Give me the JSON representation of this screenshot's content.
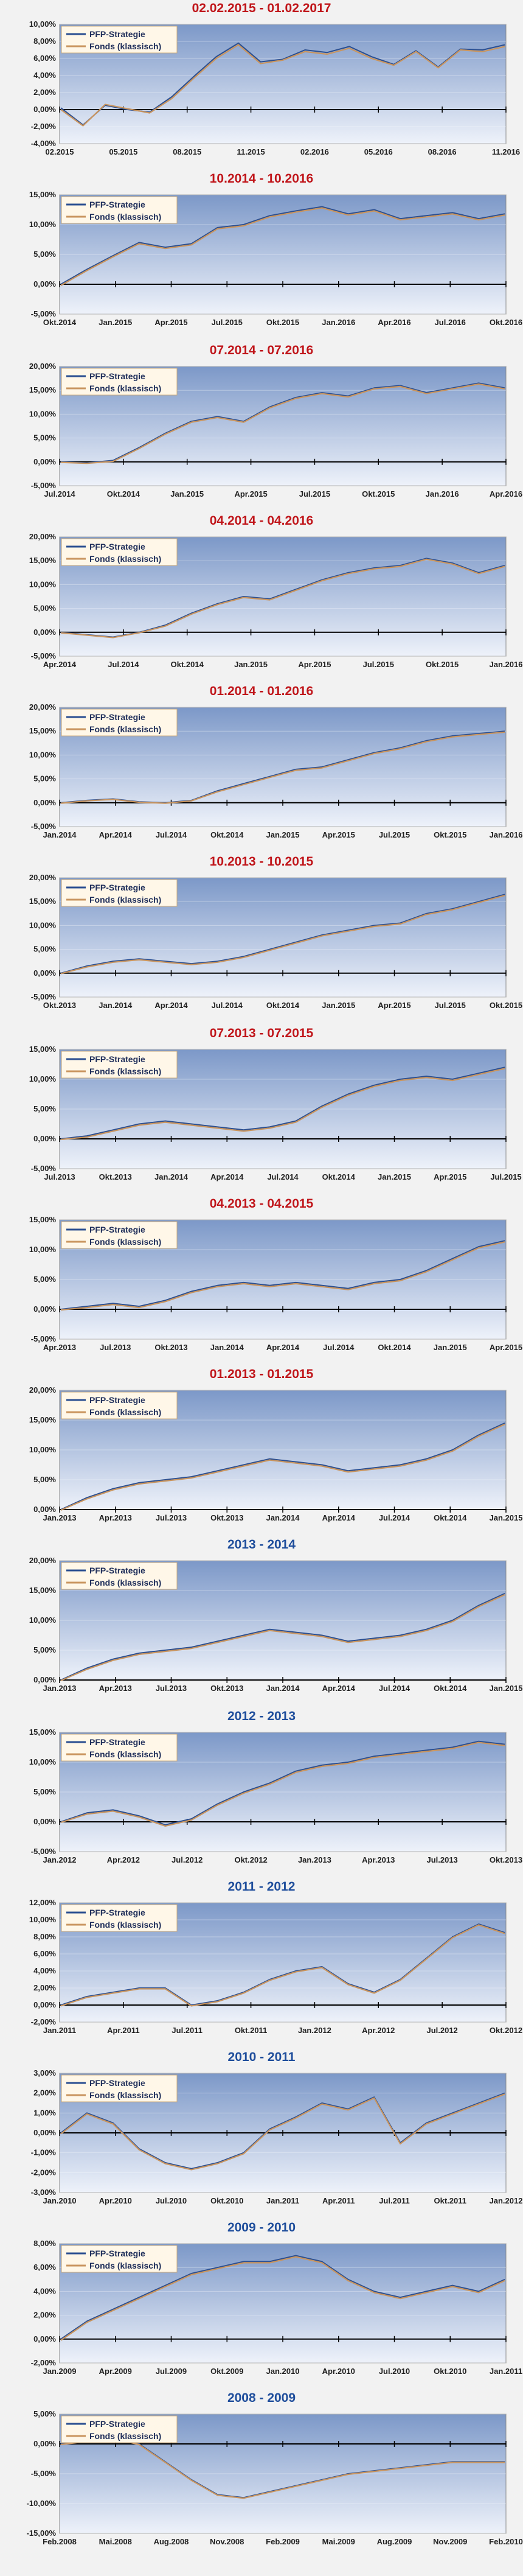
{
  "colors": {
    "red_title": "#c0151a",
    "blue_title": "#1f4e9c",
    "strategy": "#2b4f91",
    "fund": "#c9955f",
    "plot_top": "#7c98c8",
    "plot_bottom": "#eef2fa"
  },
  "legend": {
    "strategy": "PFP-Strategie",
    "fund": "Fonds (klassisch)"
  },
  "chart_data": [
    {
      "type": "line",
      "title": "02.02.2015 - 01.02.2017",
      "title_color": "red",
      "y_ticks": [
        "-4,00%",
        "-2,00%",
        "0,00%",
        "2,00%",
        "4,00%",
        "6,00%",
        "8,00%",
        "10,00%"
      ],
      "x_ticks": [
        "02.2015",
        "05.2015",
        "08.2015",
        "11.2015",
        "02.2016",
        "05.2016",
        "08.2016",
        "11.2016"
      ],
      "series": [
        {
          "name": "PFP-Strategie",
          "values": [
            0.2,
            -1.8,
            0.5,
            0.0,
            -0.3,
            1.5,
            3.9,
            6.2,
            7.8,
            5.6,
            5.9,
            7.0,
            6.7,
            7.4,
            6.2,
            5.3,
            6.9,
            5.0,
            7.1,
            7.0,
            7.6
          ]
        },
        {
          "name": "Fonds (klassisch)",
          "values": [
            0.0,
            -1.9,
            0.6,
            0.1,
            -0.4,
            1.3,
            3.7,
            6.0,
            7.6,
            5.4,
            5.8,
            6.8,
            6.5,
            7.2,
            6.0,
            5.2,
            6.8,
            4.9,
            7.0,
            6.8,
            7.4
          ]
        }
      ]
    },
    {
      "type": "line",
      "title": "10.2014 - 10.2016",
      "title_color": "red",
      "y_ticks": [
        "-5,00%",
        "0,00%",
        "5,00%",
        "10,00%",
        "15,00%"
      ],
      "x_ticks": [
        "Okt.2014",
        "Jan.2015",
        "Apr.2015",
        "Jul.2015",
        "Okt.2015",
        "Jan.2016",
        "Apr.2016",
        "Jul.2016",
        "Okt.2016"
      ],
      "series": [
        {
          "name": "PFP-Strategie",
          "values": [
            0.0,
            2.5,
            4.8,
            7.0,
            6.2,
            6.8,
            9.5,
            10.0,
            11.5,
            12.3,
            13.0,
            11.8,
            12.5,
            11.0,
            11.5,
            12.0,
            11.0,
            11.8
          ]
        },
        {
          "name": "Fonds (klassisch)",
          "values": [
            -0.2,
            2.3,
            4.6,
            6.8,
            6.0,
            6.6,
            9.3,
            9.8,
            11.3,
            12.1,
            12.8,
            11.6,
            12.3,
            10.8,
            11.3,
            11.8,
            10.8,
            11.6
          ]
        }
      ]
    },
    {
      "type": "line",
      "title": "07.2014 - 07.2016",
      "title_color": "red",
      "y_ticks": [
        "-5,00%",
        "0,00%",
        "5,00%",
        "10,00%",
        "15,00%",
        "20,00%"
      ],
      "x_ticks": [
        "Jul.2014",
        "Okt.2014",
        "Jan.2015",
        "Apr.2015",
        "Jul.2015",
        "Okt.2015",
        "Jan.2016",
        "Apr.2016"
      ],
      "series": [
        {
          "name": "PFP-Strategie",
          "values": [
            0.0,
            -0.2,
            0.3,
            3.0,
            6.0,
            8.5,
            9.5,
            8.5,
            11.5,
            13.5,
            14.5,
            13.8,
            15.5,
            16.0,
            14.5,
            15.5,
            16.5,
            15.5
          ]
        },
        {
          "name": "Fonds (klassisch)",
          "values": [
            -0.1,
            -0.3,
            0.1,
            2.8,
            5.8,
            8.3,
            9.3,
            8.3,
            11.3,
            13.3,
            14.3,
            13.6,
            15.3,
            15.8,
            14.3,
            15.3,
            16.3,
            15.3
          ]
        }
      ]
    },
    {
      "type": "line",
      "title": "04.2014 - 04.2016",
      "title_color": "red",
      "y_ticks": [
        "-5,00%",
        "0,00%",
        "5,00%",
        "10,00%",
        "15,00%",
        "20,00%"
      ],
      "x_ticks": [
        "Apr.2014",
        "Jul.2014",
        "Okt.2014",
        "Jan.2015",
        "Apr.2015",
        "Jul.2015",
        "Okt.2015",
        "Jan.2016"
      ],
      "series": [
        {
          "name": "PFP-Strategie",
          "values": [
            0.0,
            -0.5,
            -1.0,
            0.0,
            1.5,
            4.0,
            6.0,
            7.5,
            7.0,
            9.0,
            11.0,
            12.5,
            13.5,
            14.0,
            15.5,
            14.5,
            12.5,
            14.0
          ]
        },
        {
          "name": "Fonds (klassisch)",
          "values": [
            -0.1,
            -0.6,
            -1.1,
            -0.1,
            1.3,
            3.8,
            5.8,
            7.3,
            6.8,
            8.8,
            10.8,
            12.3,
            13.3,
            13.8,
            15.3,
            14.3,
            12.3,
            13.8
          ]
        }
      ]
    },
    {
      "type": "line",
      "title": "01.2014 - 01.2016",
      "title_color": "red",
      "y_ticks": [
        "-5,00%",
        "0,00%",
        "5,00%",
        "10,00%",
        "15,00%",
        "20,00%"
      ],
      "x_ticks": [
        "Jan.2014",
        "Apr.2014",
        "Jul.2014",
        "Okt.2014",
        "Jan.2015",
        "Apr.2015",
        "Jul.2015",
        "Okt.2015",
        "Jan.2016"
      ],
      "series": [
        {
          "name": "PFP-Strategie",
          "values": [
            0.0,
            0.5,
            0.8,
            0.2,
            0.0,
            0.5,
            2.5,
            4.0,
            5.5,
            7.0,
            7.5,
            9.0,
            10.5,
            11.5,
            13.0,
            14.0,
            14.5,
            15.0
          ]
        },
        {
          "name": "Fonds (klassisch)",
          "values": [
            -0.1,
            0.4,
            0.7,
            0.1,
            -0.1,
            0.4,
            2.3,
            3.8,
            5.3,
            6.8,
            7.3,
            8.8,
            10.3,
            11.3,
            12.8,
            13.8,
            14.3,
            14.8
          ]
        }
      ]
    },
    {
      "type": "line",
      "title": "10.2013 - 10.2015",
      "title_color": "red",
      "y_ticks": [
        "-5,00%",
        "0,00%",
        "5,00%",
        "10,00%",
        "15,00%",
        "20,00%"
      ],
      "x_ticks": [
        "Okt.2013",
        "Jan.2014",
        "Apr.2014",
        "Jul.2014",
        "Okt.2014",
        "Jan.2015",
        "Apr.2015",
        "Jul.2015",
        "Okt.2015"
      ],
      "series": [
        {
          "name": "PFP-Strategie",
          "values": [
            0.0,
            1.5,
            2.5,
            3.0,
            2.5,
            2.0,
            2.5,
            3.5,
            5.0,
            6.5,
            8.0,
            9.0,
            10.0,
            10.5,
            12.5,
            13.5,
            15.0,
            16.5
          ]
        },
        {
          "name": "Fonds (klassisch)",
          "values": [
            -0.1,
            1.3,
            2.3,
            2.8,
            2.3,
            1.8,
            2.3,
            3.3,
            4.8,
            6.3,
            7.8,
            8.8,
            9.8,
            10.3,
            12.3,
            13.3,
            14.8,
            16.3
          ]
        }
      ]
    },
    {
      "type": "line",
      "title": "07.2013 - 07.2015",
      "title_color": "red",
      "y_ticks": [
        "-5,00%",
        "0,00%",
        "5,00%",
        "10,00%",
        "15,00%"
      ],
      "x_ticks": [
        "Jul.2013",
        "Okt.2013",
        "Jan.2014",
        "Apr.2014",
        "Jul.2014",
        "Okt.2014",
        "Jan.2015",
        "Apr.2015",
        "Jul.2015"
      ],
      "series": [
        {
          "name": "PFP-Strategie",
          "values": [
            0.0,
            0.5,
            1.5,
            2.5,
            3.0,
            2.5,
            2.0,
            1.5,
            2.0,
            3.0,
            5.5,
            7.5,
            9.0,
            10.0,
            10.5,
            10.0,
            11.0,
            12.0
          ]
        },
        {
          "name": "Fonds (klassisch)",
          "values": [
            -0.1,
            0.3,
            1.3,
            2.3,
            2.8,
            2.3,
            1.8,
            1.3,
            1.8,
            2.8,
            5.3,
            7.3,
            8.8,
            9.8,
            10.3,
            9.8,
            10.8,
            11.8
          ]
        }
      ]
    },
    {
      "type": "line",
      "title": "04.2013 - 04.2015",
      "title_color": "red",
      "y_ticks": [
        "-5,00%",
        "0,00%",
        "5,00%",
        "10,00%",
        "15,00%"
      ],
      "x_ticks": [
        "Apr.2013",
        "Jul.2013",
        "Okt.2013",
        "Jan.2014",
        "Apr.2014",
        "Jul.2014",
        "Okt.2014",
        "Jan.2015",
        "Apr.2015"
      ],
      "series": [
        {
          "name": "PFP-Strategie",
          "values": [
            0.0,
            0.5,
            1.0,
            0.5,
            1.5,
            3.0,
            4.0,
            4.5,
            4.0,
            4.5,
            4.0,
            3.5,
            4.5,
            5.0,
            6.5,
            8.5,
            10.5,
            11.5
          ]
        },
        {
          "name": "Fonds (klassisch)",
          "values": [
            -0.1,
            0.3,
            0.8,
            0.3,
            1.3,
            2.8,
            3.8,
            4.3,
            3.8,
            4.3,
            3.8,
            3.3,
            4.3,
            4.8,
            6.3,
            8.3,
            10.3,
            11.3
          ]
        }
      ]
    },
    {
      "type": "line",
      "title": "01.2013 - 01.2015",
      "title_color": "red",
      "y_ticks": [
        "0,00%",
        "5,00%",
        "10,00%",
        "15,00%",
        "20,00%"
      ],
      "x_ticks": [
        "Jan.2013",
        "Apr.2013",
        "Jul.2013",
        "Okt.2013",
        "Jan.2014",
        "Apr.2014",
        "Jul.2014",
        "Okt.2014",
        "Jan.2015"
      ],
      "series": [
        {
          "name": "PFP-Strategie",
          "values": [
            0.0,
            2.0,
            3.5,
            4.5,
            5.0,
            5.5,
            6.5,
            7.5,
            8.5,
            8.0,
            7.5,
            6.5,
            7.0,
            7.5,
            8.5,
            10.0,
            12.5,
            14.5
          ]
        },
        {
          "name": "Fonds (klassisch)",
          "values": [
            -0.1,
            1.8,
            3.3,
            4.3,
            4.8,
            5.3,
            6.3,
            7.3,
            8.3,
            7.8,
            7.3,
            6.3,
            6.8,
            7.3,
            8.3,
            9.8,
            12.3,
            14.3
          ]
        }
      ]
    },
    {
      "type": "line",
      "title": "2013 - 2014",
      "title_color": "blue",
      "y_ticks": [
        "0,00%",
        "5,00%",
        "10,00%",
        "15,00%",
        "20,00%"
      ],
      "x_ticks": [
        "Jan.2013",
        "Apr.2013",
        "Jul.2013",
        "Okt.2013",
        "Jan.2014",
        "Apr.2014",
        "Jul.2014",
        "Okt.2014",
        "Jan.2015"
      ],
      "series": [
        {
          "name": "PFP-Strategie",
          "values": [
            0.0,
            2.0,
            3.5,
            4.5,
            5.0,
            5.5,
            6.5,
            7.5,
            8.5,
            8.0,
            7.5,
            6.5,
            7.0,
            7.5,
            8.5,
            10.0,
            12.5,
            14.5
          ]
        },
        {
          "name": "Fonds (klassisch)",
          "values": [
            -0.1,
            1.8,
            3.3,
            4.3,
            4.8,
            5.3,
            6.3,
            7.3,
            8.3,
            7.8,
            7.3,
            6.3,
            6.8,
            7.3,
            8.3,
            9.8,
            12.3,
            14.3
          ]
        }
      ]
    },
    {
      "type": "line",
      "title": "2012 - 2013",
      "title_color": "blue",
      "y_ticks": [
        "-5,00%",
        "0,00%",
        "5,00%",
        "10,00%",
        "15,00%"
      ],
      "x_ticks": [
        "Jan.2012",
        "Apr.2012",
        "Jul.2012",
        "Okt.2012",
        "Jan.2013",
        "Apr.2013",
        "Jul.2013",
        "Okt.2013"
      ],
      "series": [
        {
          "name": "PFP-Strategie",
          "values": [
            0.0,
            1.5,
            2.0,
            1.0,
            -0.5,
            0.5,
            3.0,
            5.0,
            6.5,
            8.5,
            9.5,
            10.0,
            11.0,
            11.5,
            12.0,
            12.5,
            13.5,
            13.0
          ]
        },
        {
          "name": "Fonds (klassisch)",
          "values": [
            -0.1,
            1.3,
            1.8,
            0.8,
            -0.7,
            0.3,
            2.8,
            4.8,
            6.3,
            8.3,
            9.3,
            9.8,
            10.8,
            11.3,
            11.8,
            12.3,
            13.3,
            12.8
          ]
        }
      ]
    },
    {
      "type": "line",
      "title": "2011 - 2012",
      "title_color": "blue",
      "y_ticks": [
        "-2,00%",
        "0,00%",
        "2,00%",
        "4,00%",
        "6,00%",
        "8,00%",
        "10,00%",
        "12,00%"
      ],
      "x_ticks": [
        "Jan.2011",
        "Apr.2011",
        "Jul.2011",
        "Okt.2011",
        "Jan.2012",
        "Apr.2012",
        "Jul.2012",
        "Okt.2012"
      ],
      "series": [
        {
          "name": "PFP-Strategie",
          "values": [
            0.0,
            1.0,
            1.5,
            2.0,
            2.0,
            0.0,
            0.5,
            1.5,
            3.0,
            4.0,
            4.5,
            2.5,
            1.5,
            3.0,
            5.5,
            8.0,
            9.5,
            8.5
          ]
        },
        {
          "name": "Fonds (klassisch)",
          "values": [
            -0.1,
            0.9,
            1.4,
            1.9,
            1.9,
            -0.1,
            0.4,
            1.4,
            2.9,
            3.9,
            4.4,
            2.4,
            1.4,
            2.9,
            5.4,
            7.9,
            9.4,
            8.4
          ]
        }
      ]
    },
    {
      "type": "line",
      "title": "2010 - 2011",
      "title_color": "blue",
      "y_ticks": [
        "-3,00%",
        "-2,00%",
        "-1,00%",
        "0,00%",
        "1,00%",
        "2,00%",
        "3,00%"
      ],
      "x_ticks": [
        "Jan.2010",
        "Apr.2010",
        "Jul.2010",
        "Okt.2010",
        "Jan.2011",
        "Apr.2011",
        "Jul.2011",
        "Okt.2011",
        "Jan.2012"
      ],
      "series": [
        {
          "name": "PFP-Strategie",
          "values": [
            0.0,
            1.0,
            0.5,
            -0.8,
            -1.5,
            -1.8,
            -1.5,
            -1.0,
            0.2,
            0.8,
            1.5,
            1.2,
            1.8,
            -0.5,
            0.5,
            1.0,
            1.5,
            2.0
          ]
        },
        {
          "name": "Fonds (klassisch)",
          "values": [
            -0.05,
            0.95,
            0.45,
            -0.85,
            -1.55,
            -1.85,
            -1.55,
            -1.05,
            0.15,
            0.75,
            1.45,
            1.15,
            1.75,
            -0.55,
            0.45,
            0.95,
            1.45,
            1.95
          ]
        }
      ]
    },
    {
      "type": "line",
      "title": "2009 - 2010",
      "title_color": "blue",
      "y_ticks": [
        "-2,00%",
        "0,00%",
        "2,00%",
        "4,00%",
        "6,00%",
        "8,00%"
      ],
      "x_ticks": [
        "Jan.2009",
        "Apr.2009",
        "Jul.2009",
        "Okt.2009",
        "Jan.2010",
        "Apr.2010",
        "Jul.2010",
        "Okt.2010",
        "Jan.2011"
      ],
      "series": [
        {
          "name": "PFP-Strategie",
          "values": [
            0.0,
            1.5,
            2.5,
            3.5,
            4.5,
            5.5,
            6.0,
            6.5,
            6.5,
            7.0,
            6.5,
            5.0,
            4.0,
            3.5,
            4.0,
            4.5,
            4.0,
            5.0
          ]
        },
        {
          "name": "Fonds (klassisch)",
          "values": [
            -0.1,
            1.4,
            2.4,
            3.4,
            4.4,
            5.4,
            5.9,
            6.4,
            6.4,
            6.9,
            6.4,
            4.9,
            3.9,
            3.4,
            3.9,
            4.4,
            3.9,
            4.9
          ]
        }
      ]
    },
    {
      "type": "line",
      "title": "2008 - 2009",
      "title_color": "blue",
      "y_ticks": [
        "-15,00%",
        "-10,00%",
        "-5,00%",
        "0,00%",
        "5,00%"
      ],
      "x_ticks": [
        "Feb.2008",
        "Mai.2008",
        "Aug.2008",
        "Nov.2008",
        "Feb.2009",
        "Mai.2009",
        "Aug.2009",
        "Nov.2009",
        "Feb.2010"
      ],
      "series": [
        {
          "name": "PFP-Strategie",
          "values": [
            0.0,
            0.5,
            1.0,
            0.0,
            -3.0,
            -6.0,
            -8.5,
            -9.0,
            -8.0,
            -7.0,
            -6.0,
            -5.0,
            -4.5,
            -4.0,
            -3.5,
            -3.0,
            -3.0,
            -3.0
          ]
        },
        {
          "name": "Fonds (klassisch)",
          "values": [
            -0.1,
            0.4,
            0.9,
            -0.1,
            -3.1,
            -6.1,
            -8.6,
            -9.1,
            -8.1,
            -7.1,
            -6.1,
            -5.1,
            -4.6,
            -4.1,
            -3.6,
            -3.1,
            -3.1,
            -3.1
          ]
        }
      ]
    }
  ]
}
